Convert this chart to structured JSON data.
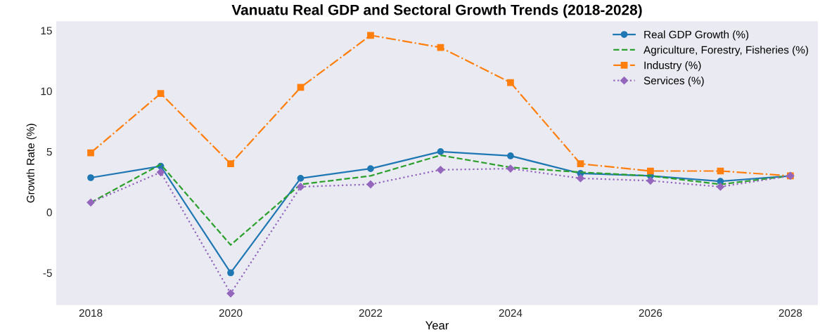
{
  "chart_data": {
    "type": "line",
    "title": "Vanuatu Real GDP and Sectoral Growth Trends (2018-2028)",
    "xlabel": "Year",
    "ylabel": "Growth Rate (%)",
    "x": [
      2018,
      2019,
      2020,
      2021,
      2022,
      2023,
      2024,
      2025,
      2026,
      2027,
      2028
    ],
    "series": [
      {
        "name": "Real GDP Growth (%)",
        "color": "#1f77b4",
        "marker": "circle",
        "line_style": "solid",
        "values": [
          2.85,
          3.8,
          -5.0,
          2.8,
          3.6,
          5.0,
          4.65,
          3.2,
          3.0,
          2.55,
          3.0
        ]
      },
      {
        "name": "Agriculture, Forestry, Fisheries (%)",
        "color": "#2ca02c",
        "marker": "none",
        "line_style": "dashed",
        "values": [
          0.8,
          3.95,
          -2.7,
          2.3,
          3.0,
          4.7,
          3.7,
          3.3,
          3.0,
          2.3,
          3.0
        ]
      },
      {
        "name": "Industry (%)",
        "color": "#ff7f0e",
        "marker": "square",
        "line_style": "dashdot",
        "values": [
          4.9,
          9.8,
          4.0,
          10.3,
          14.6,
          13.6,
          10.7,
          4.0,
          3.4,
          3.4,
          3.0
        ]
      },
      {
        "name": "Services (%)",
        "color": "#9467bd",
        "marker": "diamond",
        "line_style": "dotted",
        "values": [
          0.8,
          3.3,
          -6.7,
          2.1,
          2.3,
          3.5,
          3.6,
          2.8,
          2.6,
          2.1,
          3.0
        ]
      }
    ],
    "xlim": [
      2017.5,
      2028.4
    ],
    "ylim": [
      -7.7,
      15.8
    ],
    "xticks": [
      2018,
      2020,
      2022,
      2024,
      2026,
      2028
    ],
    "yticks": [
      -5,
      0,
      5,
      10,
      15
    ],
    "grid": false,
    "legend": "top right"
  }
}
